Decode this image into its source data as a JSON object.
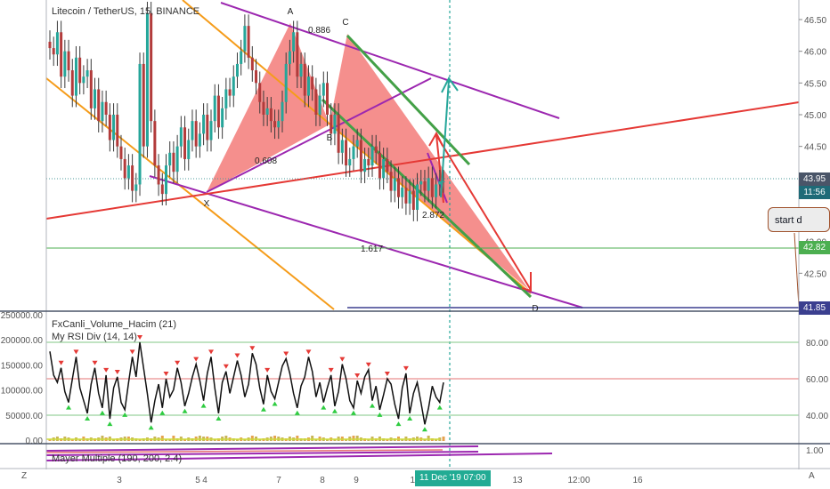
{
  "chart_data": [
    {
      "type": "candlestick",
      "title": "Litecoin / TetherUS, 15, BINANCE",
      "ylim": [
        41.85,
        46.75
      ],
      "y_ticks": [
        46.5,
        46.0,
        45.5,
        45.0,
        44.5,
        44.0,
        43.5,
        43.0,
        42.5,
        42.0
      ],
      "x_ticks": [
        "3",
        "4",
        "5",
        "7",
        "8",
        "9",
        "10",
        "13",
        "12:00",
        "16"
      ],
      "price_markers": [
        {
          "label": "43.95",
          "value": 43.95,
          "color": "#4a5568"
        },
        {
          "label": "11:56",
          "value": 43.82,
          "color": "#1f6b78"
        },
        {
          "label": "42.82",
          "value": 42.82,
          "color": "#4caf50"
        },
        {
          "label": "41.85",
          "value": 41.85,
          "color": "#3b3f8f"
        }
      ],
      "time_marker": "11 Dec '19  07:00",
      "pattern_points": [
        {
          "label": "X",
          "x": 5.0,
          "y": 43.75
        },
        {
          "label": "A",
          "x": 7.2,
          "y": 46.45
        },
        {
          "label": "B",
          "x": 8.4,
          "y": 44.8
        },
        {
          "label": "C",
          "x": 8.8,
          "y": 46.3
        },
        {
          "label": "D",
          "x": 13.1,
          "y": 42.1
        }
      ],
      "ratio_labels": [
        "0.886",
        "0.608",
        "2.872",
        "1.617"
      ],
      "annotation": "start d",
      "x": [
        2.0,
        2.1,
        2.2,
        2.3,
        2.4,
        2.5,
        2.6,
        2.7,
        2.8,
        2.9,
        3.0,
        3.1,
        3.2,
        3.3,
        3.4,
        3.5,
        3.6,
        3.7,
        3.8,
        3.9,
        4.0,
        4.1,
        4.2,
        4.3,
        4.4,
        4.5,
        4.6,
        4.7,
        4.8,
        4.9,
        5.0,
        5.1,
        5.2,
        5.3,
        5.4,
        5.5,
        5.6,
        5.7,
        5.8,
        5.9,
        6.0,
        6.1,
        6.2,
        6.3,
        6.4,
        6.5,
        6.6,
        6.7,
        6.8,
        6.9,
        7.0,
        7.1,
        7.2,
        7.3,
        7.4,
        7.5,
        7.6,
        7.7,
        7.8,
        7.9,
        8.0,
        8.1,
        8.2,
        8.3,
        8.4,
        8.5,
        8.6,
        8.7,
        8.8,
        8.9,
        9.0,
        9.1,
        9.2,
        9.3,
        9.4,
        9.5,
        9.6,
        9.7,
        9.8,
        9.9,
        10.0,
        10.1,
        10.2,
        10.3,
        10.4,
        10.5,
        10.6,
        10.7,
        10.8,
        10.9,
        11.0,
        11.1,
        11.2,
        11.3,
        11.4,
        11.5,
        11.6,
        11.7,
        11.8,
        11.9,
        12.0,
        12.1,
        12.2,
        12.3,
        12.4,
        12.5
      ],
      "close": [
        46.05,
        45.95,
        46.3,
        45.6,
        46.0,
        45.7,
        45.3,
        45.9,
        45.5,
        45.6,
        45.7,
        45.1,
        45.4,
        44.9,
        45.2,
        45.0,
        44.6,
        45.0,
        44.5,
        44.3,
        44.0,
        44.2,
        43.8,
        43.9,
        45.8,
        44.5,
        46.6,
        44.9,
        44.2,
        43.9,
        43.75,
        44.2,
        44.4,
        44.1,
        44.5,
        44.8,
        44.3,
        44.6,
        44.9,
        44.5,
        44.7,
        45.0,
        44.6,
        44.9,
        45.3,
        44.8,
        45.1,
        45.4,
        45.3,
        45.6,
        45.8,
        46.0,
        46.4,
        45.9,
        45.7,
        45.5,
        45.2,
        45.0,
        45.1,
        44.9,
        44.8,
        44.9,
        45.2,
        45.8,
        46.0,
        46.3,
        45.6,
        45.8,
        45.3,
        45.6,
        45.4,
        45.0,
        45.3,
        45.5,
        45.0,
        44.7,
        45.0,
        44.4,
        44.6,
        44.2,
        44.3,
        44.5,
        44.6,
        44.1,
        44.3,
        44.2,
        44.5,
        44.4,
        44.0,
        44.3,
        44.1,
        43.8,
        44.0,
        43.7,
        43.85,
        43.6,
        43.8,
        43.5,
        43.9,
        43.95,
        43.8,
        44.0,
        43.7,
        43.9,
        43.95,
        43.95
      ]
    },
    {
      "type": "line",
      "title": "FxCanli_Volume_Hacim (21)",
      "subtitle": "My RSI Div (14, 14)",
      "ylim": [
        0,
        250000
      ],
      "y_ticks": [
        "250000.00",
        "200000.00",
        "150000.00",
        "100000.00",
        "50000.00",
        "0.00"
      ],
      "y2_ticks": [
        80,
        60,
        40
      ],
      "series": [
        {
          "values": [
            75,
            62,
            58,
            66,
            53,
            47,
            60,
            72,
            55,
            48,
            41,
            57,
            66,
            52,
            44,
            62,
            38,
            55,
            61,
            47,
            43,
            58,
            72,
            61,
            80,
            66,
            52,
            36,
            48,
            57,
            44,
            60,
            50,
            54,
            66,
            58,
            45,
            52,
            61,
            68,
            59,
            48,
            63,
            72,
            55,
            41,
            58,
            64,
            52,
            61,
            70,
            62,
            50,
            57,
            74,
            68,
            55,
            46,
            62,
            53,
            49,
            58,
            67,
            71,
            63,
            52,
            44,
            56,
            61,
            72,
            64,
            50,
            58,
            47,
            55,
            62,
            45,
            53,
            68,
            60,
            48,
            44,
            59,
            52,
            61,
            65,
            48,
            56,
            43,
            51,
            60,
            57,
            46,
            38,
            55,
            63,
            41,
            52,
            58,
            47,
            35,
            44,
            56,
            50,
            47,
            58
          ]
        }
      ]
    },
    {
      "type": "line",
      "title": "Mayer Multiple (190, 200, 2.4)",
      "y_ticks": [
        "1.00"
      ]
    }
  ]
}
